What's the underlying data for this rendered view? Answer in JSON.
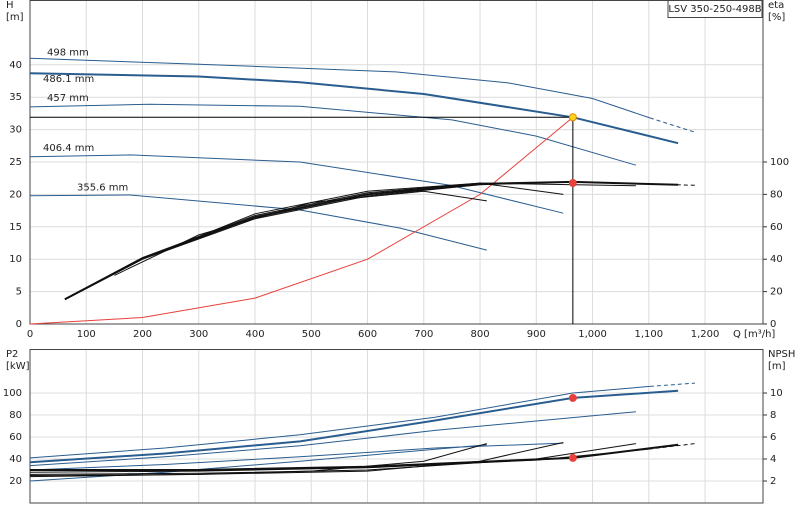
{
  "chart_data": [
    {
      "type": "line",
      "label_box": "LSV 350-250-498B",
      "ylabel": [
        "H",
        "[m]"
      ],
      "y2label": [
        "eta",
        "[%]"
      ],
      "xlabel": "Q [m³/h]",
      "xlim": [
        0,
        1303
      ],
      "ylim": [
        0,
        50
      ],
      "y2lim": [
        0,
        200
      ],
      "grid": true,
      "xtick_labels": true,
      "xticks": [
        0,
        100,
        200,
        300,
        400,
        500,
        600,
        700,
        800,
        900,
        {
          "value": 1000,
          "label": "1,000"
        },
        {
          "value": 1100,
          "label": "1,100"
        },
        {
          "value": 1200,
          "label": "1,200"
        }
      ],
      "yticks": [
        0,
        5,
        10,
        15,
        20,
        25,
        30,
        35,
        40
      ],
      "y2ticks": [
        0,
        20,
        40,
        60,
        80,
        100
      ],
      "series": [
        {
          "name": "498 mm",
          "color": "#2a5d8f",
          "width": 1,
          "dash_from": 1102,
          "x": [
            0,
            300,
            650,
            850,
            1000,
            1102,
            1182
          ],
          "values": [
            41,
            40.1,
            38.9,
            37.2,
            34.8,
            31.8,
            29.6
          ]
        },
        {
          "name": "486.1 mm",
          "color": "#2a5d8f",
          "width": 2,
          "x": [
            0,
            300,
            480,
            700,
            965,
            1152
          ],
          "values": [
            38.7,
            38.2,
            37.3,
            35.5,
            31.9,
            27.9
          ]
        },
        {
          "name": "457 mm",
          "color": "#2a5d8f",
          "width": 1,
          "x": [
            0,
            213,
            480,
            750,
            900,
            1077
          ],
          "values": [
            33.5,
            33.9,
            33.6,
            31.5,
            29,
            24.5
          ]
        },
        {
          "name": "406.4 mm",
          "color": "#2a5d8f",
          "width": 1,
          "x": [
            0,
            178,
            480,
            747,
            948
          ],
          "values": [
            25.8,
            26.1,
            25,
            21.4,
            17.1
          ]
        },
        {
          "name": "355.6 mm",
          "color": "#2a5d8f",
          "width": 1,
          "x": [
            0,
            178,
            480,
            658,
            812
          ],
          "values": [
            19.8,
            19.9,
            17.6,
            14.8,
            11.4
          ]
        },
        {
          "color": "#e8403a",
          "width": 1,
          "x": [
            0,
            200,
            400,
            600,
            800,
            965
          ],
          "values": [
            0,
            1,
            4,
            10,
            20,
            31.9
          ]
        },
        {
          "color": "#111111",
          "width": 1,
          "axis": "y2",
          "dash_from": 1100,
          "x": [
            62,
            200,
            400,
            600,
            800,
            965,
            1100,
            1182
          ],
          "values": [
            15,
            40,
            65,
            79,
            86,
            87.8,
            86.5,
            85.6
          ]
        },
        {
          "color": "#111111",
          "width": 2,
          "axis": "y2",
          "x": [
            62,
            200,
            400,
            600,
            800,
            965,
            1152
          ],
          "values": [
            15.3,
            40.5,
            66,
            80,
            86.5,
            87.7,
            85.9
          ]
        },
        {
          "color": "#111111",
          "width": 1,
          "axis": "y2",
          "x": [
            62,
            200,
            400,
            600,
            800,
            1077
          ],
          "values": [
            15.5,
            41,
            67,
            81,
            87,
            85.3
          ]
        },
        {
          "color": "#111111",
          "width": 1,
          "axis": "y2",
          "x": [
            100,
            200,
            400,
            600,
            800,
            948
          ],
          "values": [
            22,
            40,
            68,
            82,
            87,
            80
          ]
        },
        {
          "color": "#111111",
          "width": 1,
          "axis": "y2",
          "x": [
            150,
            300,
            500,
            700,
            812
          ],
          "values": [
            30,
            55,
            75,
            82,
            76
          ]
        }
      ],
      "points": [
        {
          "x": 965,
          "y": 31.9,
          "color": "#ffd21f",
          "edge": "#e08a00",
          "guide_lines": true
        },
        {
          "x": 965,
          "y": 87,
          "axis": "y2",
          "color": "#e8403a",
          "edge": "#e8403a"
        }
      ]
    },
    {
      "type": "line",
      "ylabel": [
        "P2",
        "[kW]"
      ],
      "y2label": [
        "NPSH",
        "[m]"
      ],
      "xlim": [
        0,
        1303
      ],
      "ylim": [
        0,
        140
      ],
      "y2lim": [
        0,
        14
      ],
      "grid": true,
      "xtick_labels": false,
      "xticks": [
        0,
        100,
        200,
        300,
        400,
        500,
        600,
        700,
        800,
        900,
        1000,
        1100,
        1200
      ],
      "yticks": [
        20,
        40,
        60,
        80,
        100
      ],
      "y2ticks": [
        2,
        4,
        6,
        8,
        10
      ],
      "series": [
        {
          "color": "#2a5d8f",
          "width": 1,
          "dash_from": 1102,
          "x": [
            0,
            240,
            480,
            720,
            965,
            1102,
            1182
          ],
          "values": [
            41,
            50,
            62,
            78,
            100,
            106,
            109
          ]
        },
        {
          "color": "#2a5d8f",
          "width": 2,
          "x": [
            0,
            240,
            480,
            720,
            965,
            1152
          ],
          "values": [
            37,
            45,
            56,
            75,
            95.5,
            102
          ]
        },
        {
          "color": "#2a5d8f",
          "width": 1,
          "x": [
            0,
            240,
            480,
            720,
            1077
          ],
          "values": [
            34,
            42,
            52,
            66,
            83
          ]
        },
        {
          "color": "#2a5d8f",
          "width": 1,
          "x": [
            0,
            240,
            480,
            720,
            948
          ],
          "values": [
            30,
            35,
            42,
            50,
            54.5
          ]
        },
        {
          "color": "#2a5d8f",
          "width": 1,
          "x": [
            0,
            240,
            480,
            812
          ],
          "values": [
            20,
            28,
            38,
            53
          ]
        },
        {
          "color": "#111111",
          "width": 1,
          "axis": "y2",
          "dash_from": 1100,
          "x": [
            0,
            300,
            600,
            900,
            1100,
            1182
          ],
          "values": [
            2.8,
            2.9,
            3.2,
            3.9,
            4.9,
            5.4
          ]
        },
        {
          "color": "#111111",
          "width": 2,
          "axis": "y2",
          "x": [
            0,
            300,
            600,
            965,
            1152
          ],
          "values": [
            3,
            3,
            3.3,
            4.1,
            5.3
          ]
        },
        {
          "color": "#111111",
          "width": 1,
          "axis": "y2",
          "x": [
            0,
            300,
            600,
            900,
            1077
          ],
          "values": [
            2.6,
            2.7,
            3,
            4,
            5.4
          ]
        },
        {
          "color": "#111111",
          "width": 1,
          "axis": "y2",
          "x": [
            0,
            300,
            600,
            800,
            948
          ],
          "values": [
            2.5,
            2.6,
            2.9,
            3.8,
            5.5
          ]
        },
        {
          "color": "#111111",
          "width": 1,
          "axis": "y2",
          "x": [
            0,
            300,
            500,
            700,
            812
          ],
          "values": [
            2.4,
            2.6,
            2.9,
            3.8,
            5.4
          ]
        }
      ],
      "points": [
        {
          "x": 965,
          "y": 95.5,
          "color": "#e8403a",
          "edge": "#e8403a"
        },
        {
          "x": 965,
          "y": 4.1,
          "axis": "y2",
          "color": "#e8403a",
          "edge": "#e8403a"
        }
      ]
    }
  ]
}
